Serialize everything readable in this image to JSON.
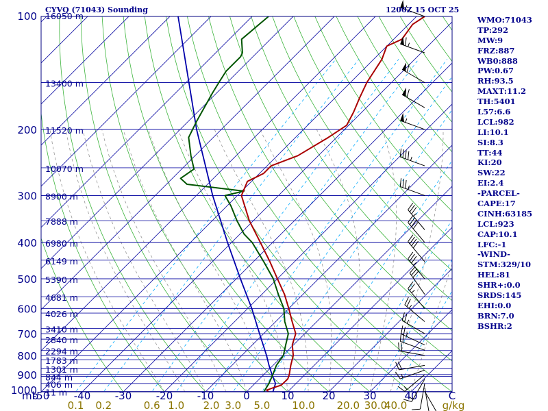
{
  "colors": {
    "isobar": "#1a1aa8",
    "isotherm": "#1a1aa8",
    "dry_adiabat": "#3cb43c",
    "mixing_ratio": "#00aaff",
    "moist_adiabat": "#888888",
    "temperature": "#aa0000",
    "dewpoint": "#005500",
    "parcel": "#0000aa",
    "wind": "#000000",
    "mixing_label": "#8b7500",
    "text": "#00008b"
  },
  "chart_data": {
    "type": "skew-t",
    "title_left": "CYVQ (71043) Sounding",
    "title_right": "1200Z 15 OCT 25",
    "xlabel": "C",
    "mb_label": "mb",
    "temp_range": [
      -50,
      50
    ],
    "pressure_range": [
      1000,
      100
    ],
    "pressure_levels": [
      1000,
      900,
      800,
      700,
      600,
      500,
      400,
      300,
      200,
      100
    ],
    "temperature_ticks": [
      -50,
      -40,
      -30,
      -20,
      -10,
      0,
      10,
      20,
      30,
      40
    ],
    "height_levels": [
      {
        "p": 998,
        "label": "11 m"
      },
      {
        "p": 950,
        "label": "406 m"
      },
      {
        "p": 910,
        "label": "844 m"
      },
      {
        "p": 866,
        "label": "1301 m"
      },
      {
        "p": 821,
        "label": "1783 m"
      },
      {
        "p": 776,
        "label": "2294 m"
      },
      {
        "p": 724,
        "label": "2840 m"
      },
      {
        "p": 678,
        "label": "3410 m"
      },
      {
        "p": 617,
        "label": "4026 m"
      },
      {
        "p": 558,
        "label": "4681 m"
      },
      {
        "p": 500,
        "label": "5390 m"
      },
      {
        "p": 446,
        "label": "6149 m"
      },
      {
        "p": 400,
        "label": "6980 m"
      },
      {
        "p": 350,
        "label": "7888 m"
      },
      {
        "p": 300,
        "label": "8900 m"
      },
      {
        "p": 253,
        "label": "10070 m"
      },
      {
        "p": 200,
        "label": "11520 m"
      },
      {
        "p": 150,
        "label": "13400 m"
      },
      {
        "p": 100,
        "label": "16050 m"
      }
    ],
    "mixing_ratio_labels": [
      "0.1",
      "0.2",
      "0.6",
      "1.0",
      "2.0",
      "3.0",
      "5.0",
      "10.0",
      "20.0",
      "30.0",
      "40.0"
    ],
    "mixing_ratio_values": [
      0.1,
      0.2,
      0.6,
      1.0,
      2.0,
      3.0,
      5.0,
      10.0,
      20.0,
      30.0,
      40.0
    ],
    "mixing_ratio_unit": "g/kg",
    "temperature_profile": [
      [
        1000,
        5.3
      ],
      [
        990,
        4.5
      ],
      [
        975,
        5.5
      ],
      [
        960,
        6.8
      ],
      [
        925,
        6.9
      ],
      [
        900,
        6.2
      ],
      [
        850,
        4.3
      ],
      [
        800,
        2.5
      ],
      [
        750,
        -0.3
      ],
      [
        700,
        -2.2
      ],
      [
        650,
        -6.0
      ],
      [
        600,
        -10.0
      ],
      [
        550,
        -14.5
      ],
      [
        500,
        -20.0
      ],
      [
        450,
        -26.0
      ],
      [
        400,
        -33.0
      ],
      [
        350,
        -41.0
      ],
      [
        300,
        -49.0
      ],
      [
        275,
        -51.0
      ],
      [
        262,
        -49.0
      ],
      [
        250,
        -49.0
      ],
      [
        235,
        -45.0
      ],
      [
        210,
        -42.0
      ],
      [
        195,
        -40.5
      ],
      [
        180,
        -42.0
      ],
      [
        165,
        -44.0
      ],
      [
        150,
        -46.0
      ],
      [
        130,
        -48.0
      ],
      [
        120,
        -50.0
      ],
      [
        115,
        -48.0
      ],
      [
        105,
        -49.0
      ],
      [
        100,
        -48.0
      ]
    ],
    "dewpoint_profile": [
      [
        1000,
        4.2
      ],
      [
        950,
        3.4
      ],
      [
        900,
        2.2
      ],
      [
        850,
        0.8
      ],
      [
        800,
        0.1
      ],
      [
        750,
        -1.9
      ],
      [
        700,
        -4.0
      ],
      [
        650,
        -7.8
      ],
      [
        600,
        -11.2
      ],
      [
        550,
        -16.0
      ],
      [
        500,
        -21.0
      ],
      [
        450,
        -27.5
      ],
      [
        400,
        -35.0
      ],
      [
        380,
        -39.0
      ],
      [
        350,
        -44.0
      ],
      [
        320,
        -49.0
      ],
      [
        300,
        -53.0
      ],
      [
        292,
        -49.5
      ],
      [
        280,
        -65.0
      ],
      [
        270,
        -68.0
      ],
      [
        255,
        -67.0
      ],
      [
        235,
        -71.0
      ],
      [
        210,
        -76.0
      ],
      [
        190,
        -78.0
      ],
      [
        160,
        -81.0
      ],
      [
        150,
        -82.0
      ],
      [
        140,
        -83.0
      ],
      [
        128,
        -83.0
      ],
      [
        125,
        -83.5
      ],
      [
        115,
        -87.0
      ],
      [
        100,
        -86.0
      ]
    ],
    "parcel_profile": [
      [
        1000,
        6.4
      ],
      [
        950,
        5.0
      ],
      [
        900,
        2.0
      ],
      [
        850,
        -1.0
      ],
      [
        800,
        -4.0
      ],
      [
        700,
        -11.0
      ],
      [
        600,
        -19.0
      ],
      [
        500,
        -29.0
      ],
      [
        400,
        -41.0
      ],
      [
        300,
        -56.0
      ],
      [
        200,
        -76.0
      ],
      [
        100,
        -108.0
      ]
    ],
    "wind_barbs": [
      {
        "p": 997,
        "dir": 150,
        "spd": 5
      },
      {
        "p": 975,
        "dir": 170,
        "spd": 10
      },
      {
        "p": 950,
        "dir": 190,
        "spd": 10
      },
      {
        "p": 925,
        "dir": 210,
        "spd": 15
      },
      {
        "p": 900,
        "dir": 230,
        "spd": 15
      },
      {
        "p": 875,
        "dir": 250,
        "spd": 15
      },
      {
        "p": 850,
        "dir": 260,
        "spd": 20
      },
      {
        "p": 800,
        "dir": 280,
        "spd": 20
      },
      {
        "p": 775,
        "dir": 290,
        "spd": 20
      },
      {
        "p": 750,
        "dir": 295,
        "spd": 25
      },
      {
        "p": 700,
        "dir": 300,
        "spd": 25
      },
      {
        "p": 650,
        "dir": 310,
        "spd": 25
      },
      {
        "p": 600,
        "dir": 320,
        "spd": 25
      },
      {
        "p": 550,
        "dir": 325,
        "spd": 30
      },
      {
        "p": 500,
        "dir": 320,
        "spd": 35
      },
      {
        "p": 450,
        "dir": 320,
        "spd": 40
      },
      {
        "p": 400,
        "dir": 320,
        "spd": 40
      },
      {
        "p": 370,
        "dir": 320,
        "spd": 35
      },
      {
        "p": 300,
        "dir": 290,
        "spd": 35
      },
      {
        "p": 250,
        "dir": 290,
        "spd": 45
      },
      {
        "p": 200,
        "dir": 290,
        "spd": 55
      },
      {
        "p": 175,
        "dir": 300,
        "spd": 60
      },
      {
        "p": 150,
        "dir": 300,
        "spd": 60
      },
      {
        "p": 125,
        "dir": 290,
        "spd": 65
      },
      {
        "p": 100,
        "dir": 290,
        "spd": 55
      }
    ]
  },
  "stats": [
    "WMO:71043",
    "TP:292",
    "MW:9",
    "FRZ:887",
    "WB0:888",
    "PW:0.67",
    "RH:93.5",
    "MAXT:11.2",
    "TH:5401",
    "L57:6.6",
    "LCL:982",
    "LI:10.1",
    "SI:8.3",
    "TT:44",
    "KI:20",
    "SW:22",
    "EI:2.4",
    "-PARCEL-",
    "CAPE:17",
    "CINH:63185",
    "LCL:923",
    "CAP:10.1",
    "LFC:-1",
    "-WIND-",
    "STM:329/10",
    "HEL:81",
    "SHR+:0.0",
    "SRDS:145",
    "EHI:0.0",
    "BRN:7.0",
    "BSHR:2"
  ]
}
